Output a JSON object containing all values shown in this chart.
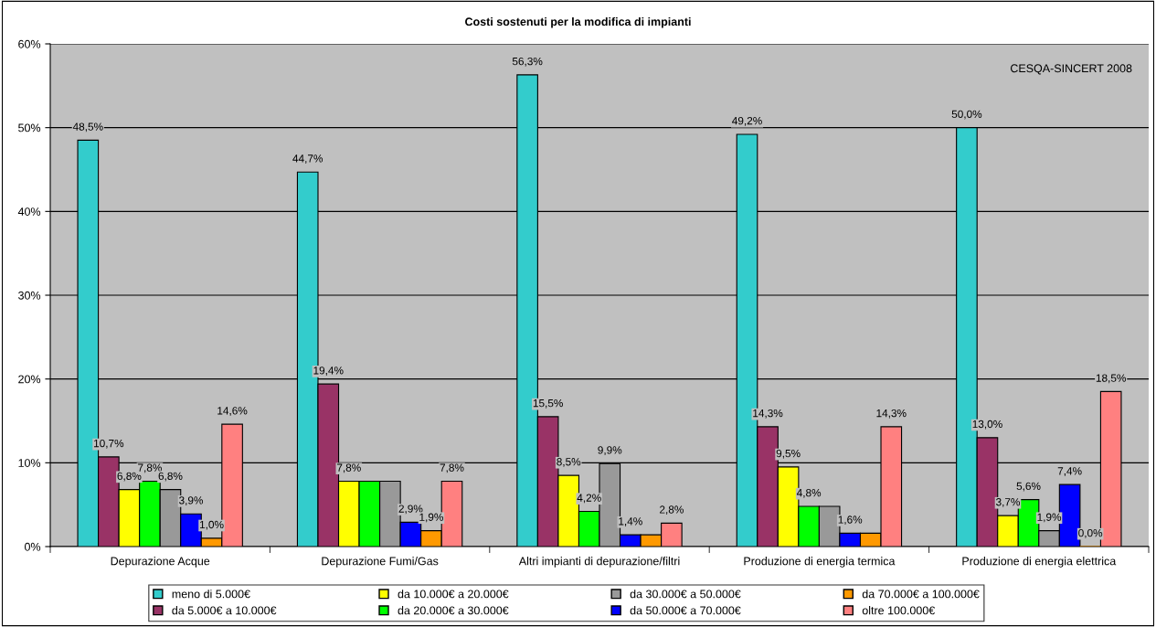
{
  "chart_data": {
    "type": "bar",
    "title": "Costi sostenuti per la modifica di impianti",
    "categories": [
      "Depurazione Acque",
      "Depurazione Fumi/Gas",
      "Altri impianti di depurazione/filtri",
      "Produzione di energia termica",
      "Produzione di energia elettrica"
    ],
    "series": [
      {
        "name": "meno di 5.000€",
        "color": "#33cccc",
        "values": [
          48.5,
          44.7,
          56.3,
          49.2,
          50.0
        ],
        "value_labels": [
          "48,5%",
          "44,7%",
          "56,3%",
          "49,2%",
          "50,0%"
        ]
      },
      {
        "name": "da 5.000€ a 10.000€",
        "color": "#993366",
        "values": [
          10.7,
          19.4,
          15.5,
          14.3,
          13.0
        ],
        "value_labels": [
          "10,7%",
          "19,4%",
          "15,5%",
          "14,3%",
          "13,0%"
        ]
      },
      {
        "name": "da 10.000€ a 20.000€",
        "color": "#ffff00",
        "values": [
          6.8,
          7.8,
          8.5,
          9.5,
          3.7
        ],
        "value_labels": [
          "6,8%",
          "7,8%",
          "8,5%",
          "9,5%",
          "3,7%"
        ]
      },
      {
        "name": "da 20.000€ a 30.000€",
        "color": "#00ff00",
        "values": [
          7.8,
          7.8,
          4.2,
          4.8,
          5.6
        ],
        "value_labels": [
          "7,8%",
          null,
          "4,2%",
          "4,8%",
          "5,6%"
        ]
      },
      {
        "name": "da 30.000€ a 50.000€",
        "color": "#999999",
        "values": [
          6.8,
          7.8,
          9.9,
          4.8,
          1.9
        ],
        "value_labels": [
          "6,8%",
          null,
          "9,9%",
          null,
          "1,9%"
        ]
      },
      {
        "name": "da 50.000€ a 70.000€",
        "color": "#0000ff",
        "values": [
          3.9,
          2.9,
          1.4,
          1.6,
          7.4
        ],
        "value_labels": [
          "3,9%",
          "2,9%",
          "1,4%",
          "1,6%",
          "7,4%"
        ]
      },
      {
        "name": "da 70.000€ a 100.000€",
        "color": "#ff9900",
        "values": [
          1.0,
          1.9,
          1.4,
          1.6,
          0.0
        ],
        "value_labels": [
          "1,0%",
          "1,9%",
          null,
          null,
          "0,0%"
        ]
      },
      {
        "name": "oltre 100.000€",
        "color": "#ff8080",
        "values": [
          14.6,
          7.8,
          2.8,
          14.3,
          18.5
        ],
        "value_labels": [
          "14,6%",
          "7,8%",
          "2,8%",
          "14,3%",
          "18,5%"
        ]
      }
    ],
    "ylim": [
      0,
      60
    ],
    "yticks": [
      {
        "value": 0,
        "label": "0%"
      },
      {
        "value": 10,
        "label": "10%"
      },
      {
        "value": 20,
        "label": "20%"
      },
      {
        "value": 30,
        "label": "30%"
      },
      {
        "value": 40,
        "label": "40%"
      },
      {
        "value": 50,
        "label": "50%"
      },
      {
        "value": 60,
        "label": "60%"
      }
    ],
    "grid": "y",
    "legend": "bottom",
    "annotations": [
      "CESQA-SINCERT 2008"
    ]
  }
}
